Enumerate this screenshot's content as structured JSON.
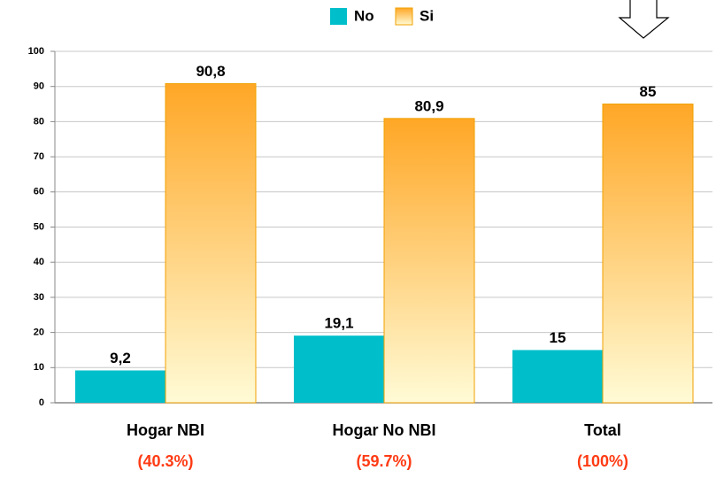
{
  "chart_data": {
    "type": "bar",
    "categories": [
      "Hogar NBI",
      "Hogar No NBI",
      "Total"
    ],
    "category_notes": [
      "(40.3%)",
      "(59.7%)",
      "(100%)"
    ],
    "series": [
      {
        "name": "No",
        "color": "#00bfca",
        "values": [
          9.2,
          19.1,
          15
        ],
        "value_labels": [
          "9,2",
          "19,1",
          "15"
        ]
      },
      {
        "name": "Si",
        "color": "#ffa726",
        "values": [
          90.8,
          80.9,
          85
        ],
        "value_labels": [
          "90,8",
          "80,9",
          "85"
        ]
      }
    ],
    "ylim": [
      0,
      100
    ],
    "yticks": [
      0,
      10,
      20,
      30,
      40,
      50,
      60,
      70,
      80,
      90,
      100
    ],
    "grid": true,
    "legend": "top"
  }
}
